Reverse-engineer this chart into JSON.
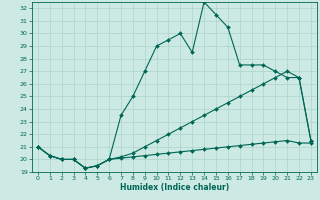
{
  "xlabel": "Humidex (Indice chaleur)",
  "xlim": [
    -0.5,
    23.5
  ],
  "ylim": [
    19,
    32.5
  ],
  "yticks": [
    19,
    20,
    21,
    22,
    23,
    24,
    25,
    26,
    27,
    28,
    29,
    30,
    31,
    32
  ],
  "xticks": [
    0,
    1,
    2,
    3,
    4,
    5,
    6,
    7,
    8,
    9,
    10,
    11,
    12,
    13,
    14,
    15,
    16,
    17,
    18,
    19,
    20,
    21,
    22,
    23
  ],
  "bg_color": "#cce9e3",
  "grid_color": "#aad4cc",
  "line_color": "#006655",
  "curve1_x": [
    0,
    1,
    2,
    3,
    4,
    5,
    6,
    7,
    8,
    9,
    10,
    11,
    12,
    13,
    14,
    15,
    16,
    17,
    18,
    19,
    20,
    21,
    22,
    23
  ],
  "curve1_y": [
    21.0,
    20.3,
    20.0,
    20.0,
    19.3,
    19.5,
    20.0,
    23.5,
    25.0,
    27.0,
    29.0,
    29.5,
    30.0,
    28.5,
    32.5,
    31.5,
    30.5,
    27.5,
    27.5,
    27.5,
    27.0,
    26.5,
    26.5,
    21.5
  ],
  "curve2_x": [
    0,
    1,
    2,
    3,
    4,
    5,
    6,
    7,
    8,
    9,
    10,
    11,
    12,
    13,
    14,
    15,
    16,
    17,
    18,
    19,
    20,
    21,
    22,
    23
  ],
  "curve2_y": [
    21.0,
    20.3,
    20.0,
    20.0,
    19.3,
    19.5,
    20.0,
    20.2,
    20.5,
    21.0,
    21.5,
    22.0,
    22.5,
    23.0,
    23.5,
    24.0,
    24.5,
    25.0,
    25.5,
    26.0,
    26.5,
    27.0,
    26.5,
    21.5
  ],
  "curve3_x": [
    0,
    1,
    2,
    3,
    4,
    5,
    6,
    7,
    8,
    9,
    10,
    11,
    12,
    13,
    14,
    15,
    16,
    17,
    18,
    19,
    20,
    21,
    22,
    23
  ],
  "curve3_y": [
    21.0,
    20.3,
    20.0,
    20.0,
    19.3,
    19.5,
    20.0,
    20.1,
    20.2,
    20.3,
    20.4,
    20.5,
    20.6,
    20.7,
    20.8,
    20.9,
    21.0,
    21.1,
    21.2,
    21.3,
    21.4,
    21.5,
    21.3,
    21.3
  ]
}
